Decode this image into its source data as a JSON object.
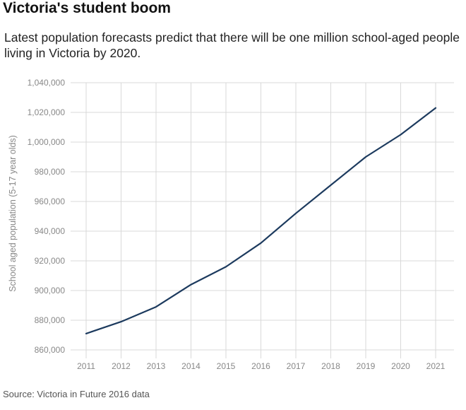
{
  "page": {
    "title": "Victoria's student boom",
    "subtitle": "Latest population forecasts predict that there will be one million school-aged people living in Victoria by 2020.",
    "source": "Source: Victoria in Future 2016 data"
  },
  "colors": {
    "line": "#1c3a5e",
    "grid": "#d9d9d9",
    "tick_text": "#888888"
  },
  "chart_data": {
    "type": "line",
    "title": "Victoria's student boom",
    "subtitle": "Latest population forecasts predict that there will be one million school-aged people living in Victoria by 2020.",
    "xlabel": "",
    "ylabel": "School aged population (5-17 year olds)",
    "x": [
      2011,
      2012,
      2013,
      2014,
      2015,
      2016,
      2017,
      2018,
      2019,
      2020,
      2021
    ],
    "x_tick_labels": [
      "2011",
      "2012",
      "2013",
      "2014",
      "2015",
      "2016",
      "2017",
      "2018",
      "2019",
      "2020",
      "2021"
    ],
    "y": [
      871000,
      879000,
      889000,
      904000,
      916000,
      932000,
      952000,
      971000,
      990000,
      1005000,
      1023000
    ],
    "ylim": [
      860000,
      1040000
    ],
    "y_ticks": [
      860000,
      880000,
      900000,
      920000,
      940000,
      960000,
      980000,
      1000000,
      1020000,
      1040000
    ],
    "y_tick_labels": [
      "860,000",
      "880,000",
      "900,000",
      "920,000",
      "940,000",
      "960,000",
      "980,000",
      "1,000,000",
      "1,020,000",
      "1,040,000"
    ],
    "grid": "vertical and horizontal",
    "legend": "none",
    "source": "Source: Victoria in Future 2016 data"
  }
}
